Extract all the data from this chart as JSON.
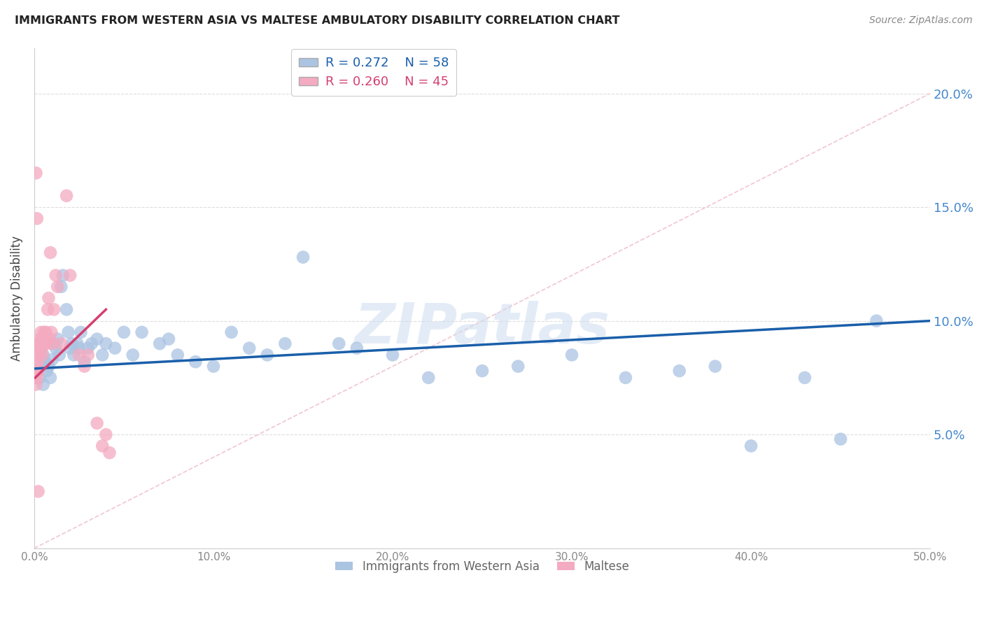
{
  "title": "IMMIGRANTS FROM WESTERN ASIA VS MALTESE AMBULATORY DISABILITY CORRELATION CHART",
  "source": "Source: ZipAtlas.com",
  "ylabel": "Ambulatory Disability",
  "legend_blue_r": "0.272",
  "legend_blue_n": "58",
  "legend_pink_r": "0.260",
  "legend_pink_n": "45",
  "blue_color": "#aac4e2",
  "pink_color": "#f4aac0",
  "blue_line_color": "#1a5faa",
  "pink_line_color": "#d44070",
  "diagonal_color": "#f0c0cc",
  "watermark": "ZIPatlas",
  "blue_scatter_x": [
    0.2,
    0.3,
    0.4,
    0.5,
    0.5,
    0.6,
    0.7,
    0.8,
    0.9,
    1.0,
    1.1,
    1.2,
    1.3,
    1.4,
    1.5,
    1.6,
    1.8,
    1.9,
    2.0,
    2.1,
    2.2,
    2.4,
    2.5,
    2.6,
    2.8,
    3.0,
    3.2,
    3.5,
    3.8,
    4.0,
    4.5,
    5.0,
    5.5,
    6.0,
    7.0,
    7.5,
    8.0,
    9.0,
    10.0,
    11.0,
    12.0,
    13.0,
    14.0,
    15.0,
    17.0,
    18.0,
    20.0,
    22.0,
    25.0,
    27.0,
    30.0,
    33.0,
    36.0,
    38.0,
    40.0,
    43.0,
    45.0,
    47.0
  ],
  "blue_scatter_y": [
    7.8,
    7.5,
    8.0,
    8.5,
    7.2,
    8.2,
    7.8,
    8.0,
    7.5,
    8.3,
    9.0,
    8.8,
    9.2,
    8.5,
    11.5,
    12.0,
    10.5,
    9.5,
    8.8,
    9.0,
    8.5,
    9.0,
    8.8,
    9.5,
    8.2,
    8.8,
    9.0,
    9.2,
    8.5,
    9.0,
    8.8,
    9.5,
    8.5,
    9.5,
    9.0,
    9.2,
    8.5,
    8.2,
    8.0,
    9.5,
    8.8,
    8.5,
    9.0,
    12.8,
    9.0,
    8.8,
    8.5,
    7.5,
    7.8,
    8.0,
    8.5,
    7.5,
    7.8,
    8.0,
    4.5,
    7.5,
    4.8,
    10.0
  ],
  "pink_scatter_x": [
    0.05,
    0.08,
    0.1,
    0.12,
    0.15,
    0.18,
    0.2,
    0.22,
    0.25,
    0.28,
    0.3,
    0.32,
    0.35,
    0.38,
    0.4,
    0.42,
    0.45,
    0.48,
    0.5,
    0.55,
    0.6,
    0.65,
    0.7,
    0.75,
    0.8,
    0.85,
    0.9,
    0.95,
    1.0,
    1.1,
    1.2,
    1.3,
    1.5,
    1.8,
    2.0,
    2.5,
    2.8,
    3.0,
    3.5,
    3.8,
    4.0,
    4.2,
    0.1,
    0.15,
    0.22
  ],
  "pink_scatter_y": [
    7.5,
    7.8,
    7.2,
    8.0,
    7.5,
    8.2,
    8.5,
    7.8,
    8.5,
    9.0,
    8.8,
    9.2,
    9.0,
    9.5,
    8.8,
    9.2,
    8.5,
    9.0,
    9.2,
    9.5,
    9.0,
    9.5,
    9.0,
    10.5,
    11.0,
    9.2,
    13.0,
    9.5,
    9.0,
    10.5,
    12.0,
    11.5,
    9.0,
    15.5,
    12.0,
    8.5,
    8.0,
    8.5,
    5.5,
    4.5,
    5.0,
    4.2,
    16.5,
    14.5,
    2.5
  ],
  "xlim": [
    0,
    50
  ],
  "ylim": [
    0,
    22
  ],
  "x_tick_positions": [
    0,
    10,
    20,
    30,
    40,
    50
  ],
  "x_tick_labels": [
    "0.0%",
    "10.0%",
    "20.0%",
    "30.0%",
    "40.0%",
    "50.0%"
  ],
  "y_tick_positions": [
    5,
    10,
    15,
    20
  ],
  "y_tick_labels": [
    "5.0%",
    "10.0%",
    "15.0%",
    "20.0%"
  ],
  "blue_line_x0": 0,
  "blue_line_x1": 50,
  "blue_line_y0": 7.9,
  "blue_line_y1": 10.0,
  "pink_line_x0": 0.05,
  "pink_line_x1": 4.0,
  "pink_line_y0": 7.5,
  "pink_line_y1": 10.5
}
